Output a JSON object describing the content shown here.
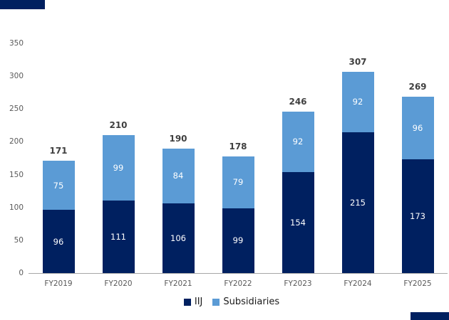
{
  "colors": {
    "navy": "#002060",
    "light_blue": "#5b9bd5",
    "total_label": "#404040",
    "axis_label": "#595959",
    "axis_line": "#a6a6a6",
    "bar_value_label": "#ffffff",
    "legend_text": "#1a1a1a"
  },
  "legend": {
    "items": [
      "IIJ",
      "Subsidiaries"
    ]
  },
  "chart_data": {
    "type": "bar",
    "stacked": true,
    "title": "",
    "xlabel": "",
    "ylabel": "",
    "categories": [
      "FY2019",
      "FY2020",
      "FY2021",
      "FY2022",
      "FY2023",
      "FY2024",
      "FY2025"
    ],
    "series": [
      {
        "name": "IIJ",
        "color": "#002060",
        "values": [
          96,
          111,
          106,
          99,
          154,
          215,
          173
        ]
      },
      {
        "name": "Subsidiaries",
        "color": "#5b9bd5",
        "values": [
          75,
          99,
          84,
          79,
          92,
          92,
          96
        ]
      }
    ],
    "totals": [
      171,
      210,
      190,
      178,
      246,
      307,
      269
    ],
    "yticks": [
      0,
      50,
      100,
      150,
      200,
      250,
      300,
      350
    ],
    "ylim": [
      0,
      350
    ],
    "grid": false,
    "legend_position": "bottom-center"
  }
}
